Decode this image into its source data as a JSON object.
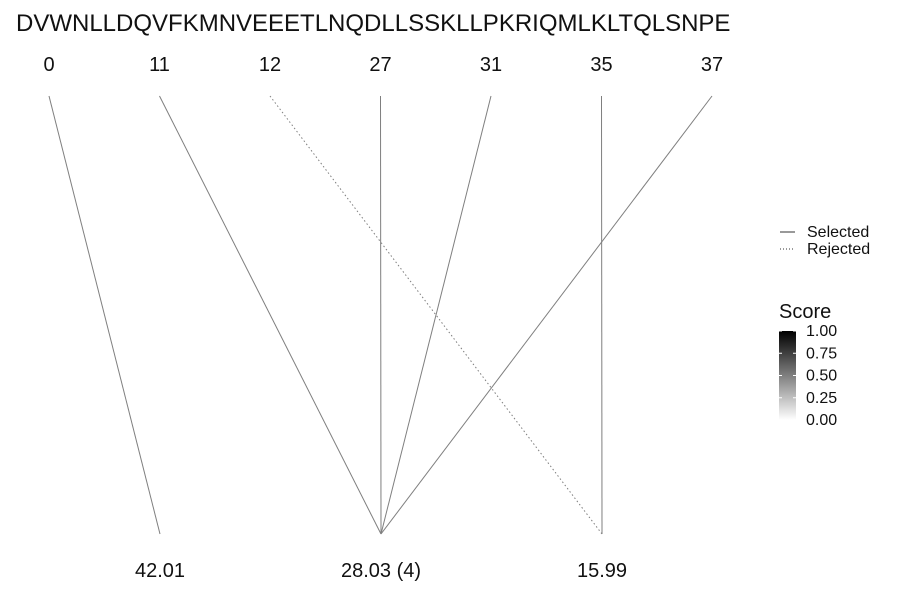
{
  "chart_data": {
    "type": "line",
    "sequence": "DVWNLLDQVFKMNVEEETLNQDLLSSKLLPKRIQMLKLTQLSNPE",
    "positions": [
      "0",
      "11",
      "12",
      "27",
      "31",
      "35",
      "37"
    ],
    "scores_labels": [
      "42.01",
      "28.03 (4)",
      "15.99"
    ],
    "links": [
      {
        "from": "0",
        "to": "42.01",
        "status": "Selected",
        "score": 0.5
      },
      {
        "from": "11",
        "to": "28.03 (4)",
        "status": "Selected",
        "score": 0.5
      },
      {
        "from": "12",
        "to": "15.99",
        "status": "Rejected",
        "score": 0.5
      },
      {
        "from": "27",
        "to": "28.03 (4)",
        "status": "Selected",
        "score": 0.5
      },
      {
        "from": "31",
        "to": "28.03 (4)",
        "status": "Selected",
        "score": 0.5
      },
      {
        "from": "35",
        "to": "15.99",
        "status": "Selected",
        "score": 0.5
      },
      {
        "from": "37",
        "to": "28.03 (4)",
        "status": "Selected",
        "score": 0.5
      }
    ],
    "legend": {
      "linetype": [
        {
          "label": "Selected",
          "style": "solid"
        },
        {
          "label": "Rejected",
          "style": "dotted"
        }
      ],
      "score": {
        "title": "Score",
        "ticks": [
          "1.00",
          "0.75",
          "0.50",
          "0.25",
          "0.00"
        ],
        "colors": [
          "#000000",
          "#ffffff"
        ]
      }
    },
    "line_color": "#7f7f7f"
  }
}
